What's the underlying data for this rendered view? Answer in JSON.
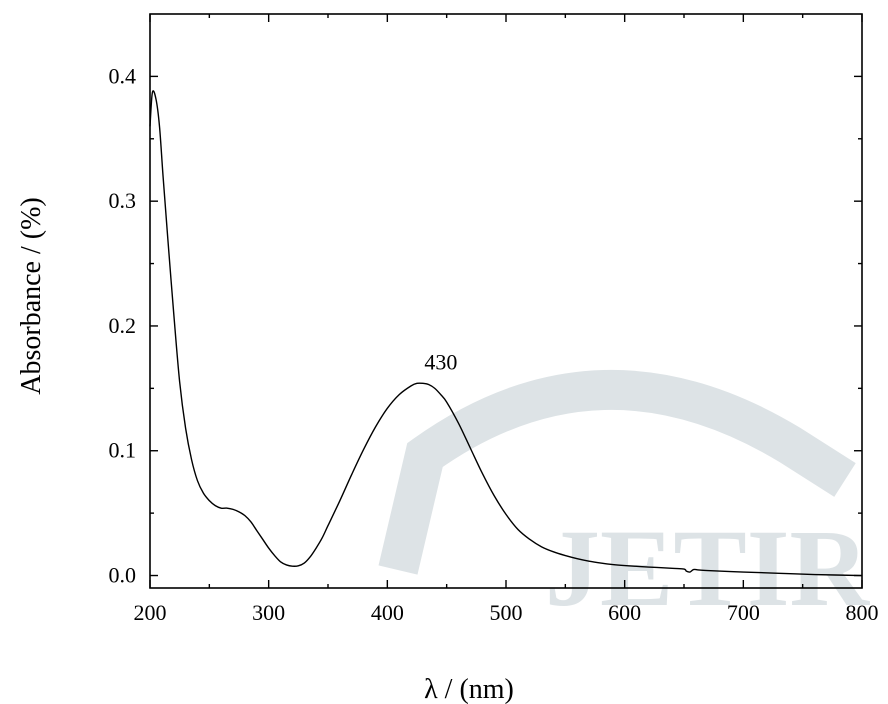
{
  "chart_data": {
    "type": "line",
    "title": "",
    "xlabel": "λ / (nm)",
    "ylabel": "Absorbance / (%)",
    "xlim": [
      200,
      800
    ],
    "ylim": [
      -0.01,
      0.45
    ],
    "xticks": [
      200,
      300,
      400,
      500,
      600,
      700,
      800
    ],
    "xtick_labels": [
      "200",
      "300",
      "400",
      "500",
      "600",
      "700",
      "800"
    ],
    "yticks": [
      0.0,
      0.1,
      0.2,
      0.3,
      0.4
    ],
    "ytick_labels": [
      "0.0",
      "0.1",
      "0.2",
      "0.3",
      "0.4"
    ],
    "grid": false,
    "legend": "none",
    "series": [
      {
        "color": "#000000",
        "x": [
          200,
          202,
          205,
          208,
          211,
          215,
          220,
          225,
          230,
          235,
          240,
          245,
          250,
          255,
          260,
          265,
          270,
          275,
          280,
          285,
          290,
          295,
          300,
          305,
          310,
          315,
          320,
          325,
          330,
          335,
          340,
          345,
          350,
          360,
          370,
          380,
          390,
          400,
          410,
          420,
          425,
          430,
          435,
          440,
          445,
          450,
          460,
          470,
          480,
          490,
          500,
          510,
          520,
          530,
          540,
          550,
          560,
          570,
          580,
          590,
          600,
          620,
          640,
          650,
          652,
          655,
          658,
          662,
          670,
          700,
          730,
          760,
          800
        ],
        "y": [
          0.36,
          0.387,
          0.382,
          0.36,
          0.32,
          0.27,
          0.21,
          0.155,
          0.118,
          0.093,
          0.076,
          0.066,
          0.06,
          0.056,
          0.054,
          0.054,
          0.053,
          0.051,
          0.048,
          0.043,
          0.036,
          0.029,
          0.022,
          0.016,
          0.011,
          0.0085,
          0.0075,
          0.0078,
          0.01,
          0.015,
          0.022,
          0.03,
          0.04,
          0.06,
          0.081,
          0.101,
          0.119,
          0.134,
          0.145,
          0.152,
          0.154,
          0.154,
          0.153,
          0.15,
          0.145,
          0.139,
          0.122,
          0.102,
          0.082,
          0.064,
          0.049,
          0.037,
          0.029,
          0.023,
          0.019,
          0.016,
          0.0135,
          0.0115,
          0.01,
          0.0088,
          0.008,
          0.0068,
          0.0058,
          0.0052,
          0.0035,
          0.0028,
          0.0048,
          0.0045,
          0.004,
          0.0028,
          0.0018,
          0.0008,
          0.0
        ]
      }
    ],
    "annotations": [
      {
        "text": "430",
        "x": 430,
        "y": 0.154
      }
    ]
  },
  "watermark": {
    "text": "JETIR",
    "color": "#dde3e6"
  }
}
